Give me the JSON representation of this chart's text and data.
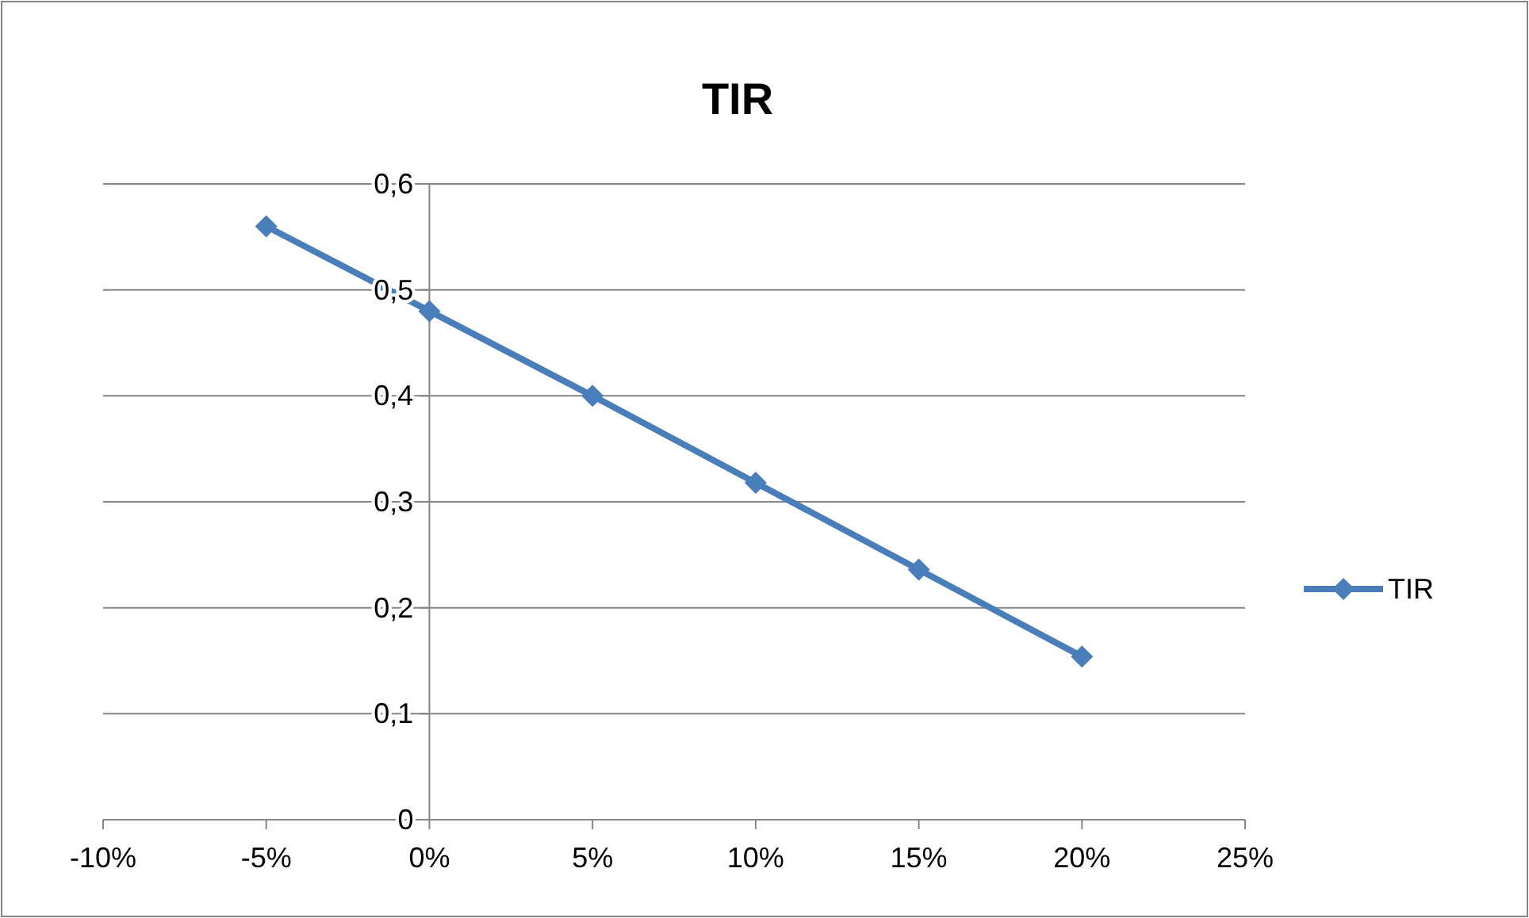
{
  "chart_data": {
    "type": "line",
    "title": "TIR",
    "x": [
      -5,
      0,
      5,
      10,
      15,
      20
    ],
    "series": [
      {
        "name": "TIR",
        "color": "#4a7ebb",
        "values": [
          0.56,
          0.48,
          0.4,
          0.318,
          0.236,
          0.154
        ]
      }
    ],
    "xlim": [
      -10,
      25
    ],
    "xticks": [
      {
        "value": -10,
        "label": "-10%"
      },
      {
        "value": -5,
        "label": "-5%"
      },
      {
        "value": 0,
        "label": "0%"
      },
      {
        "value": 5,
        "label": "5%"
      },
      {
        "value": 10,
        "label": "10%"
      },
      {
        "value": 15,
        "label": "15%"
      },
      {
        "value": 20,
        "label": "20%"
      },
      {
        "value": 25,
        "label": "25%"
      }
    ],
    "ylim": [
      0,
      0.6
    ],
    "yticks": [
      0,
      {
        "value": 0.1,
        "label": "0,1"
      },
      {
        "value": 0.2,
        "label": "0,2"
      },
      {
        "value": 0.3,
        "label": "0,3"
      },
      {
        "value": 0.4,
        "label": "0,4"
      },
      {
        "value": 0.5,
        "label": "0,5"
      },
      {
        "value": 0.6,
        "label": "0,6"
      }
    ],
    "grid": "y",
    "legend": "right",
    "marker": "diamond",
    "line_style": "solid"
  }
}
